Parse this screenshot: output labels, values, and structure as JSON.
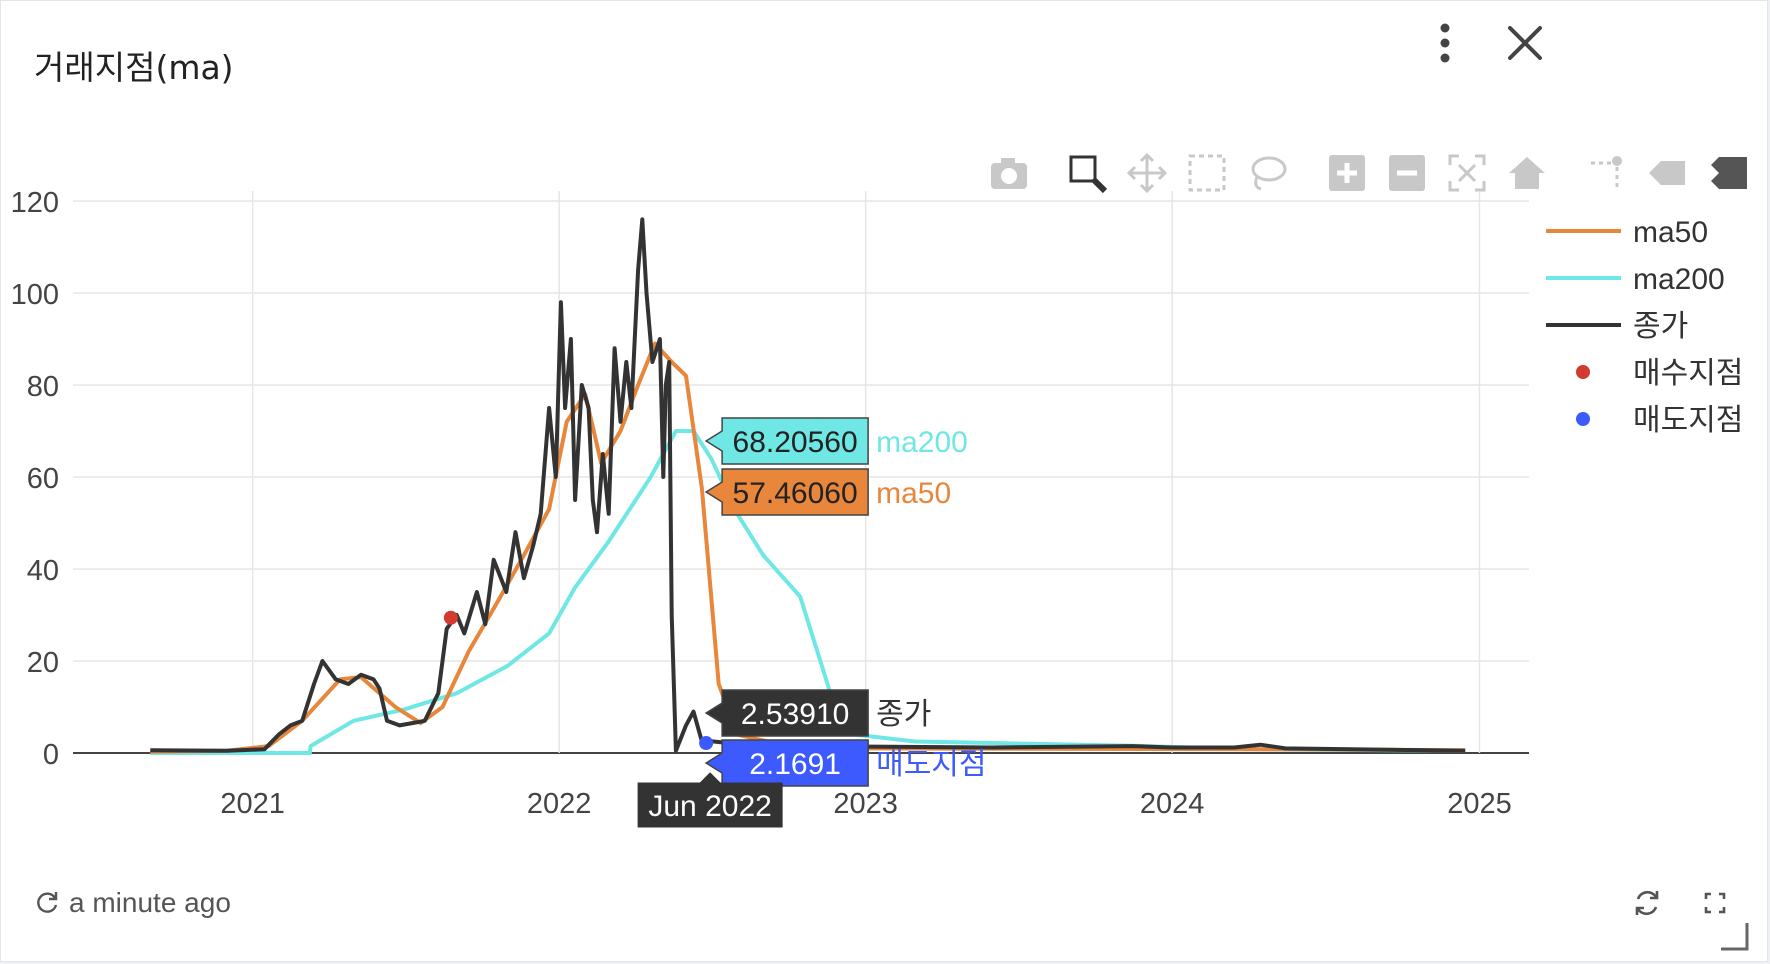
{
  "widget": {
    "title": "거래지점(ma)",
    "last_updated": "a minute ago",
    "icons": {
      "menu": "more-vertical-icon",
      "close": "close-icon",
      "refresh": "refresh-icon",
      "fullscreen": "fullscreen-icon",
      "resize": "resize-corner-icon"
    }
  },
  "toolbar": [
    "camera-icon",
    "zoom-icon",
    "pan-icon",
    "box-select-icon",
    "lasso-select-icon",
    "zoom-in-icon",
    "zoom-out-icon",
    "autoscale-icon",
    "reset-axes-icon",
    "spike-lines-icon",
    "hover-closest-icon",
    "hover-compare-icon"
  ],
  "chart_data": {
    "type": "line",
    "title": "",
    "xlabel": "",
    "ylabel": "",
    "x_ticks": [
      "2021",
      "2022",
      "2023",
      "2024",
      "2025"
    ],
    "y_ticks": [
      0,
      20,
      40,
      60,
      80,
      100,
      120
    ],
    "ylim": [
      0,
      120
    ],
    "xlim": [
      "2020-06-01",
      "2025-03-01"
    ],
    "grid": true,
    "legend_position": "right",
    "series": [
      {
        "name": "ma50",
        "color": "#e8863c",
        "points": [
          [
            "2020-09-01",
            0.3
          ],
          [
            "2020-12-01",
            0.5
          ],
          [
            "2021-01-20",
            1.5
          ],
          [
            "2021-03-01",
            7
          ],
          [
            "2021-04-15",
            16
          ],
          [
            "2021-05-10",
            16.5
          ],
          [
            "2021-06-20",
            10
          ],
          [
            "2021-07-20",
            6.5
          ],
          [
            "2021-08-15",
            10
          ],
          [
            "2021-09-15",
            22
          ],
          [
            "2021-10-20",
            33
          ],
          [
            "2021-11-20",
            43
          ],
          [
            "2021-12-20",
            53
          ],
          [
            "2022-01-10",
            72
          ],
          [
            "2022-02-01",
            78
          ],
          [
            "2022-02-20",
            63
          ],
          [
            "2022-03-15",
            70
          ],
          [
            "2022-04-05",
            80
          ],
          [
            "2022-04-25",
            89
          ],
          [
            "2022-05-15",
            85
          ],
          [
            "2022-06-01",
            82
          ],
          [
            "2022-06-20",
            57.5
          ],
          [
            "2022-07-10",
            15
          ],
          [
            "2022-08-01",
            4
          ],
          [
            "2022-10-01",
            1.5
          ],
          [
            "2023-01-01",
            1
          ],
          [
            "2024-06-01",
            0.8
          ],
          [
            "2024-12-15",
            0.6
          ]
        ]
      },
      {
        "name": "ma200",
        "color": "#6ee7e5",
        "points": [
          [
            "2020-09-01",
            0
          ],
          [
            "2021-01-01",
            0
          ],
          [
            "2021-03-10",
            0
          ],
          [
            "2021-03-11",
            1.5
          ],
          [
            "2021-05-01",
            7
          ],
          [
            "2021-07-01",
            9.5
          ],
          [
            "2021-09-01",
            13
          ],
          [
            "2021-11-01",
            19
          ],
          [
            "2021-12-20",
            26
          ],
          [
            "2022-01-20",
            36
          ],
          [
            "2022-03-01",
            46
          ],
          [
            "2022-04-20",
            60
          ],
          [
            "2022-05-20",
            70
          ],
          [
            "2022-06-10",
            70
          ],
          [
            "2022-07-01",
            64
          ],
          [
            "2022-08-01",
            52
          ],
          [
            "2022-09-01",
            43
          ],
          [
            "2022-10-15",
            34
          ],
          [
            "2022-11-20",
            13
          ],
          [
            "2022-12-20",
            4
          ],
          [
            "2023-03-01",
            2.5
          ],
          [
            "2023-12-01",
            1.5
          ],
          [
            "2024-04-01",
            0.8
          ],
          [
            "2024-12-15",
            0.5
          ]
        ]
      },
      {
        "name": "종가",
        "color": "#333333",
        "points": [
          [
            "2020-09-01",
            0.6
          ],
          [
            "2020-12-01",
            0.5
          ],
          [
            "2021-01-15",
            0.8
          ],
          [
            "2021-02-01",
            4
          ],
          [
            "2021-02-15",
            6
          ],
          [
            "2021-03-01",
            7
          ],
          [
            "2021-03-15",
            15
          ],
          [
            "2021-03-25",
            20
          ],
          [
            "2021-04-10",
            16
          ],
          [
            "2021-04-25",
            15
          ],
          [
            "2021-05-10",
            17
          ],
          [
            "2021-05-25",
            16
          ],
          [
            "2021-06-01",
            14
          ],
          [
            "2021-06-10",
            7
          ],
          [
            "2021-06-25",
            6
          ],
          [
            "2021-07-10",
            6.5
          ],
          [
            "2021-07-25",
            7
          ],
          [
            "2021-08-10",
            13
          ],
          [
            "2021-08-20",
            27
          ],
          [
            "2021-09-01",
            30
          ],
          [
            "2021-09-10",
            26
          ],
          [
            "2021-09-25",
            35
          ],
          [
            "2021-10-05",
            28
          ],
          [
            "2021-10-15",
            42
          ],
          [
            "2021-10-30",
            35
          ],
          [
            "2021-11-10",
            48
          ],
          [
            "2021-11-20",
            38
          ],
          [
            "2021-12-01",
            45
          ],
          [
            "2021-12-10",
            52
          ],
          [
            "2021-12-20",
            75
          ],
          [
            "2021-12-28",
            60
          ],
          [
            "2022-01-03",
            98
          ],
          [
            "2022-01-08",
            75
          ],
          [
            "2022-01-15",
            90
          ],
          [
            "2022-01-20",
            55
          ],
          [
            "2022-01-28",
            80
          ],
          [
            "2022-02-05",
            75
          ],
          [
            "2022-02-10",
            55
          ],
          [
            "2022-02-15",
            48
          ],
          [
            "2022-02-22",
            65
          ],
          [
            "2022-03-01",
            52
          ],
          [
            "2022-03-08",
            88
          ],
          [
            "2022-03-15",
            72
          ],
          [
            "2022-03-22",
            85
          ],
          [
            "2022-03-28",
            75
          ],
          [
            "2022-04-05",
            105
          ],
          [
            "2022-04-10",
            116
          ],
          [
            "2022-04-15",
            100
          ],
          [
            "2022-04-22",
            85
          ],
          [
            "2022-05-01",
            90
          ],
          [
            "2022-05-05",
            60
          ],
          [
            "2022-05-08",
            80
          ],
          [
            "2022-05-12",
            85
          ],
          [
            "2022-05-15",
            30
          ],
          [
            "2022-05-20",
            0.5
          ],
          [
            "2022-06-01",
            6
          ],
          [
            "2022-06-10",
            9
          ],
          [
            "2022-06-20",
            2.5
          ],
          [
            "2022-07-01",
            2.54
          ],
          [
            "2022-07-20",
            2.2
          ],
          [
            "2022-10-01",
            1.5
          ],
          [
            "2023-06-01",
            1.2
          ],
          [
            "2023-11-15",
            1.5
          ],
          [
            "2024-01-01",
            1.2
          ],
          [
            "2024-03-15",
            1.2
          ],
          [
            "2024-04-15",
            1.8
          ],
          [
            "2024-05-15",
            1
          ],
          [
            "2024-12-15",
            0.5
          ]
        ]
      },
      {
        "name": "매수지점",
        "color": "#d43a2f",
        "mode": "markers",
        "points": [
          [
            "2021-08-25",
            29.4
          ]
        ]
      },
      {
        "name": "매도지점",
        "color": "#3d5afe",
        "mode": "markers",
        "points": [
          [
            "2022-06-25",
            2.1691
          ]
        ]
      }
    ],
    "hover": {
      "x_label": "Jun 2022",
      "x_date": "2022-06-25",
      "items": [
        {
          "value": "68.20560",
          "name": "ma200",
          "y": 68.2056,
          "box_color": "#6ee7e5",
          "text_color": "#222222",
          "name_color": "#6ee7e5"
        },
        {
          "value": "57.46060",
          "name": "ma50",
          "y": 57.4606,
          "box_color": "#e8863c",
          "text_color": "#222222",
          "name_color": "#e8863c"
        },
        {
          "value": "2.53910",
          "name": "종가",
          "y": 2.5391,
          "box_color": "#333333",
          "text_color": "#ffffff",
          "name_color": "#333333"
        },
        {
          "value": "2.1691",
          "name": "매도지점",
          "y": 2.1691,
          "box_color": "#3d5afe",
          "text_color": "#ffffff",
          "name_color": "#3d5afe"
        }
      ]
    }
  }
}
